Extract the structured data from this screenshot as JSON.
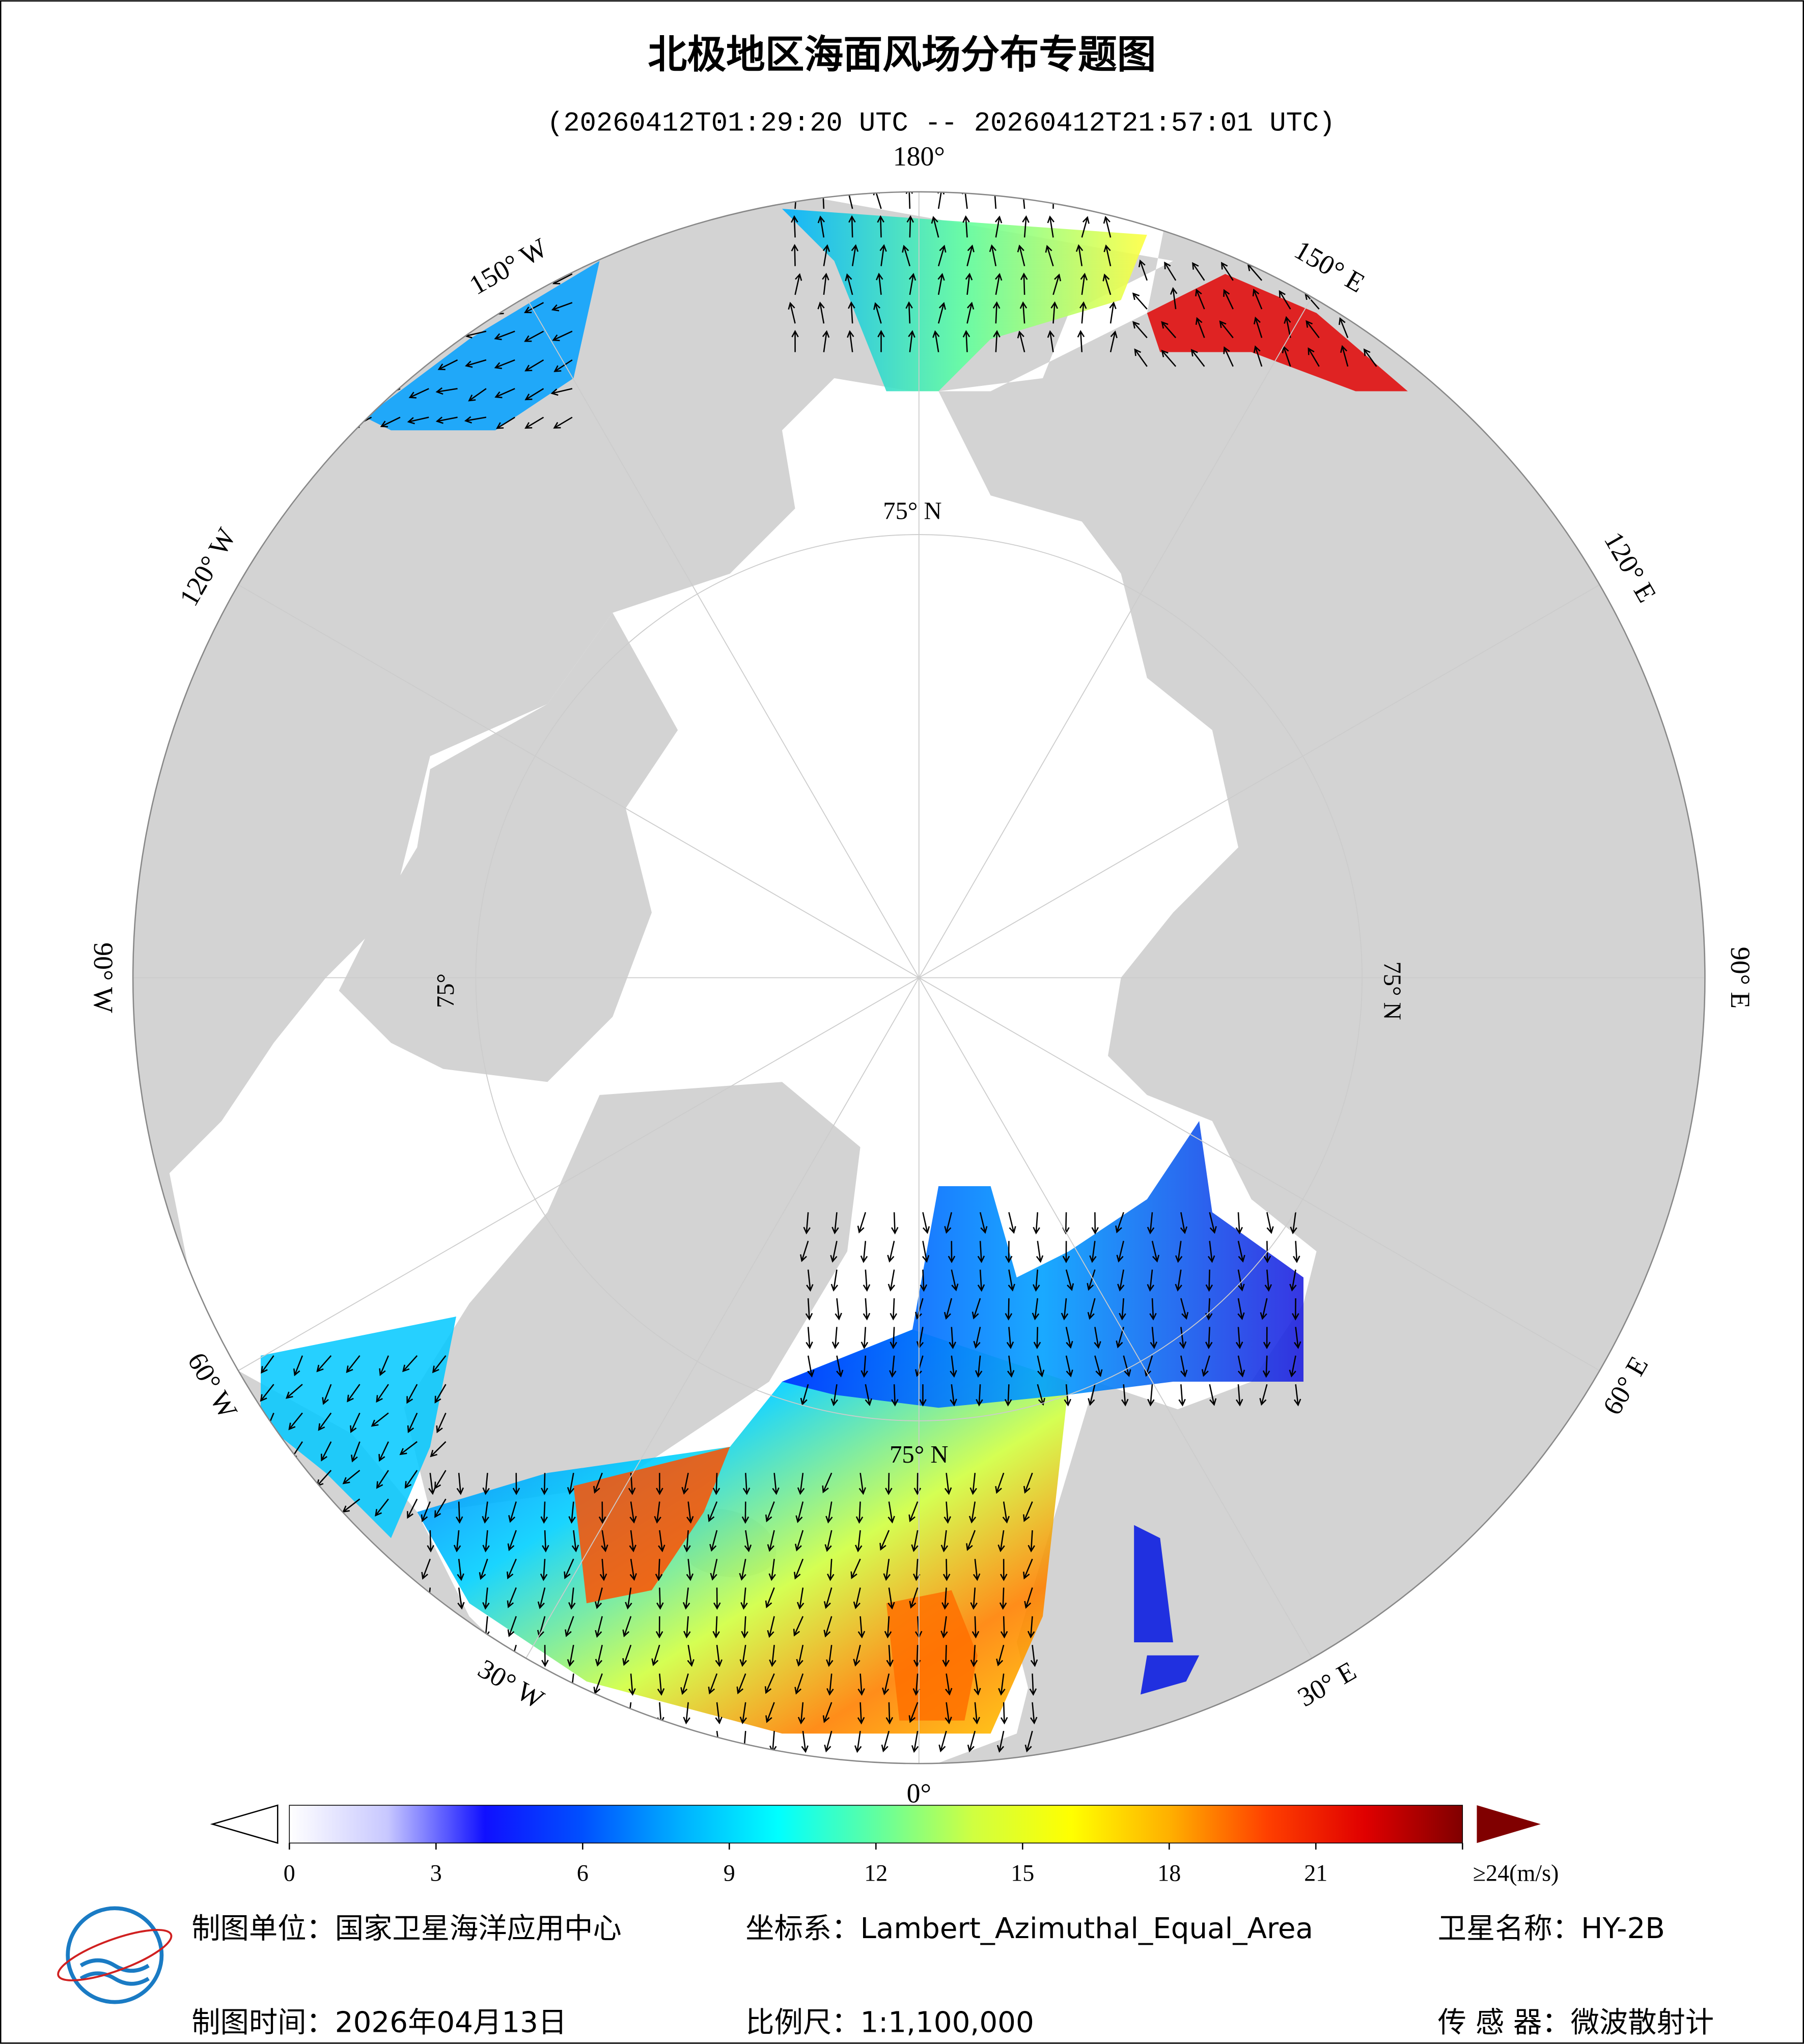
{
  "header": {
    "title": "北极地区海面风场分布专题图",
    "subtitle": "(20260412T01:29:20 UTC -- 20260412T21:57:01 UTC)"
  },
  "map": {
    "meridian_labels": [
      "180°",
      "150° E",
      "120° E",
      "90° E",
      "60° E",
      "30° E",
      "0°",
      "30° W",
      "60° W",
      "90° W",
      "120° W",
      "150° W"
    ],
    "parallel_labels": [
      "75° N",
      "75° N",
      "75°",
      "75° N"
    ]
  },
  "colorbar": {
    "range": [
      0,
      24
    ],
    "colors": [
      "#ffffff",
      "#c8c8ff",
      "#1010ff",
      "#0050ff",
      "#00b0ff",
      "#00ffff",
      "#60ffa0",
      "#d0ff40",
      "#ffff00",
      "#ffb000",
      "#ff4000",
      "#e00000",
      "#800000"
    ],
    "ticks": [
      0,
      3,
      6,
      9,
      12,
      15,
      18,
      21,
      {
        "value": 24,
        "label": "≥24(m/s)"
      }
    ]
  },
  "footer": {
    "unit": "制图单位：国家卫星海洋应用中心",
    "crs": "坐标系：Lambert_Azimuthal_Equal_Area",
    "satellite": "卫星名称：HY-2B",
    "date": "制图时间：2026年04月13日",
    "scale": "比例尺：1:1,100,000",
    "sensor": "传 感 器：微波散射计"
  }
}
